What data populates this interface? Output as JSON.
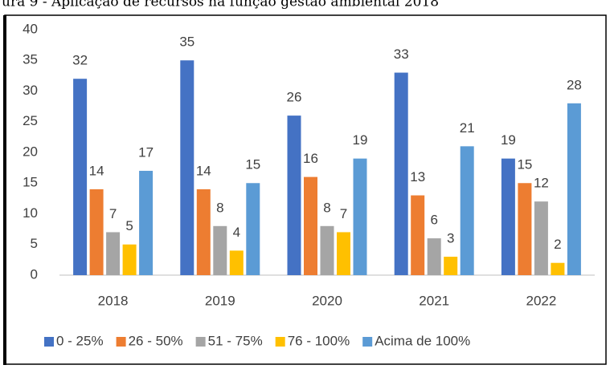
{
  "chart_data": {
    "type": "bar",
    "title": "ura 9 - Aplicação de recursos na função gestão ambiental 2018",
    "categories": [
      "2018",
      "2019",
      "2020",
      "2021",
      "2022"
    ],
    "series": [
      {
        "name": "0 - 25%",
        "color": "#4472c4",
        "values": [
          32,
          35,
          26,
          33,
          19
        ]
      },
      {
        "name": "26 - 50%",
        "color": "#ed7d31",
        "values": [
          14,
          14,
          16,
          13,
          15
        ]
      },
      {
        "name": "51 - 75%",
        "color": "#a5a5a5",
        "values": [
          7,
          8,
          8,
          6,
          12
        ]
      },
      {
        "name": "76 - 100%",
        "color": "#ffc000",
        "values": [
          5,
          4,
          7,
          3,
          2
        ]
      },
      {
        "name": "Acima de 100%",
        "color": "#5b9bd5",
        "values": [
          17,
          15,
          19,
          21,
          28
        ]
      }
    ],
    "ylim": [
      0,
      40
    ],
    "yticks": [
      0,
      5,
      10,
      15,
      20,
      25,
      30,
      35,
      40
    ],
    "grid": false,
    "legend": "bottom"
  }
}
